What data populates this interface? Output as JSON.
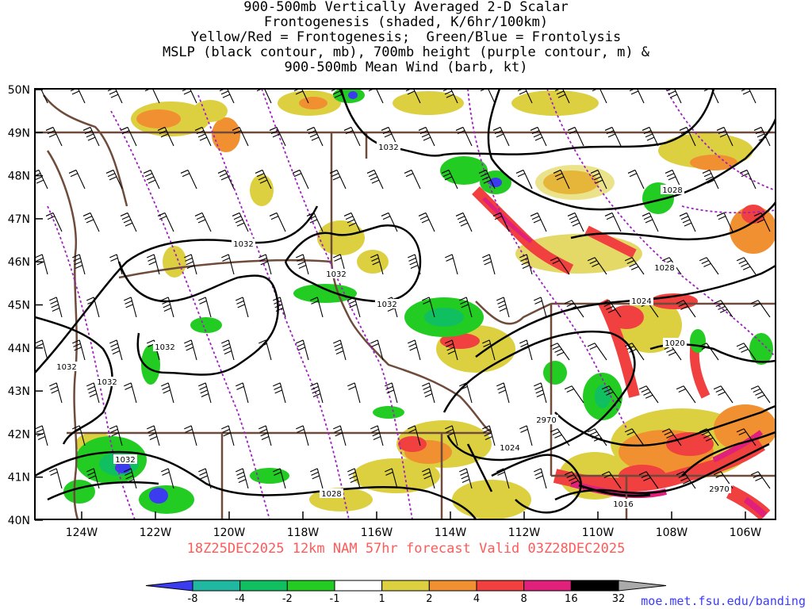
{
  "title_lines": [
    "900-500mb Vertically Averaged 2-D Scalar",
    "Frontogenesis (shaded, K/6hr/100km)",
    "Yellow/Red = Frontogenesis;  Green/Blue = Frontolysis",
    "MSLP (black contour, mb), 700mb height (purple contour, m) &",
    "900-500mb Mean Wind (barb, kt)"
  ],
  "lat_labels": [
    "50N",
    "49N",
    "48N",
    "47N",
    "46N",
    "45N",
    "44N",
    "43N",
    "42N",
    "41N",
    "40N"
  ],
  "lon_labels": [
    "124W",
    "122W",
    "120W",
    "118W",
    "116W",
    "114W",
    "112W",
    "110W",
    "108W",
    "106W"
  ],
  "contour_labels": [
    "1032",
    "1032",
    "1032",
    "1032",
    "1032",
    "1032",
    "1032",
    "1032",
    "1028",
    "1028",
    "1028",
    "1024",
    "1024",
    "1020",
    "1016",
    "2970",
    "2970"
  ],
  "caption": "18Z25DEC2025 12km NAM 57hr forecast Valid 03Z28DEC2025",
  "colorbar": {
    "labels": [
      "-8",
      "-4",
      "-2",
      "-1",
      "1",
      "2",
      "4",
      "8",
      "16",
      "32"
    ],
    "colors": [
      "#3b3bf0",
      "#20b8a0",
      "#10c060",
      "#22cc22",
      "#ffffff",
      "#ddd040",
      "#f09030",
      "#f04040",
      "#e0207a",
      "#000000",
      "#aaaaaa"
    ]
  },
  "credit": "moe.met.fsu.edu/banding",
  "colors": {
    "mslp": "#000000",
    "height700": "#a020c0",
    "borders": "#6e4b3a",
    "caption": "#ff5a5a",
    "credit": "#3a3aff"
  }
}
